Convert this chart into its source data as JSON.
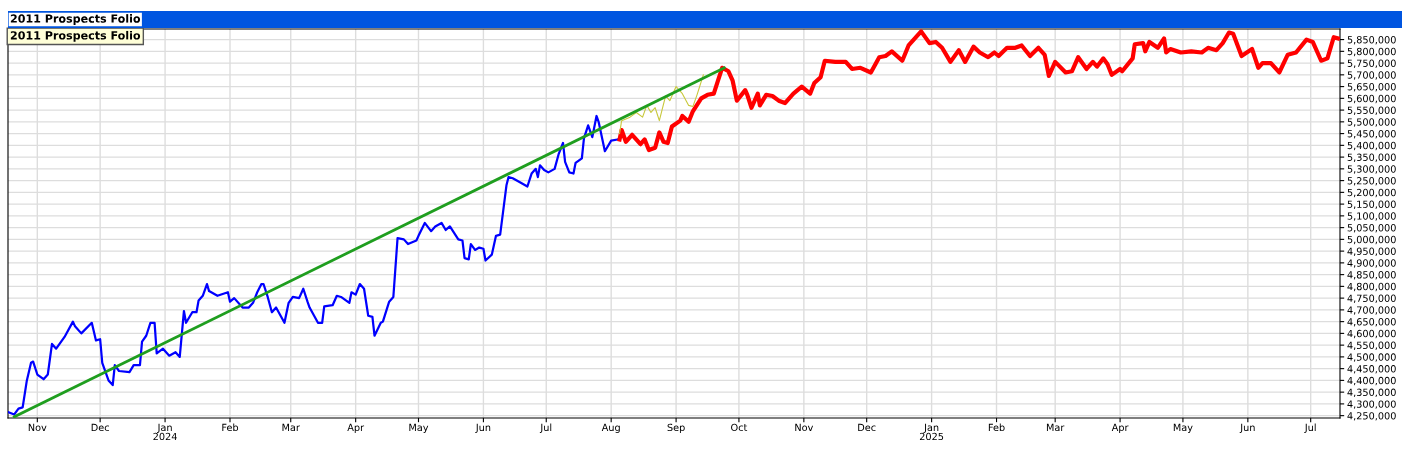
{
  "chart_data": {
    "type": "line",
    "title": "2011 Prospects Folio",
    "annotations": [
      "2011 Prospects Folio"
    ],
    "xlim": [
      "2023-10-18",
      "2025-07-15"
    ],
    "xticks": [
      {
        "value": "2023-11-01",
        "label": "Nov"
      },
      {
        "value": "2023-12-01",
        "label": "Dec"
      },
      {
        "value": "2024-01-01",
        "label": "Jan\n2024"
      },
      {
        "value": "2024-02-01",
        "label": "Feb"
      },
      {
        "value": "2024-03-01",
        "label": "Mar"
      },
      {
        "value": "2024-04-01",
        "label": "Apr"
      },
      {
        "value": "2024-05-01",
        "label": "May"
      },
      {
        "value": "2024-06-01",
        "label": "Jun"
      },
      {
        "value": "2024-07-01",
        "label": "Jul"
      },
      {
        "value": "2024-08-01",
        "label": "Aug"
      },
      {
        "value": "2024-09-01",
        "label": "Sep"
      },
      {
        "value": "2024-10-01",
        "label": "Oct"
      },
      {
        "value": "2024-11-01",
        "label": "Nov"
      },
      {
        "value": "2024-12-01",
        "label": "Dec"
      },
      {
        "value": "2025-01-01",
        "label": "Jan\n2025"
      },
      {
        "value": "2025-02-01",
        "label": "Feb"
      },
      {
        "value": "2025-03-01",
        "label": "Mar"
      },
      {
        "value": "2025-04-01",
        "label": "Apr"
      },
      {
        "value": "2025-05-01",
        "label": "May"
      },
      {
        "value": "2025-06-01",
        "label": "Jun"
      },
      {
        "value": "2025-07-01",
        "label": "Jul"
      }
    ],
    "ylim": [
      4240000,
      5895000
    ],
    "yticks": [
      {
        "value": 4250000,
        "label": "4,250,000"
      },
      {
        "value": 4300000,
        "label": "4,300,000"
      },
      {
        "value": 4350000,
        "label": "4,350,000"
      },
      {
        "value": 4400000,
        "label": "4,400,000"
      },
      {
        "value": 4450000,
        "label": "4,450,000"
      },
      {
        "value": 4500000,
        "label": "4,500,000"
      },
      {
        "value": 4550000,
        "label": "4,550,000"
      },
      {
        "value": 4600000,
        "label": "4,600,000"
      },
      {
        "value": 4650000,
        "label": "4,650,000"
      },
      {
        "value": 4700000,
        "label": "4,700,000"
      },
      {
        "value": 4750000,
        "label": "4,750,000"
      },
      {
        "value": 4800000,
        "label": "4,800,000"
      },
      {
        "value": 4850000,
        "label": "4,850,000"
      },
      {
        "value": 4900000,
        "label": "4,900,000"
      },
      {
        "value": 4950000,
        "label": "4,950,000"
      },
      {
        "value": 5000000,
        "label": "5,000,000"
      },
      {
        "value": 5050000,
        "label": "5,050,000"
      },
      {
        "value": 5100000,
        "label": "5,100,000"
      },
      {
        "value": 5150000,
        "label": "5,150,000"
      },
      {
        "value": 5200000,
        "label": "5,200,000"
      },
      {
        "value": 5250000,
        "label": "5,250,000"
      },
      {
        "value": 5300000,
        "label": "5,300,000"
      },
      {
        "value": 5350000,
        "label": "5,350,000"
      },
      {
        "value": 5400000,
        "label": "5,400,000"
      },
      {
        "value": 5450000,
        "label": "5,450,000"
      },
      {
        "value": 5500000,
        "label": "5,500,000"
      },
      {
        "value": 5550000,
        "label": "5,550,000"
      },
      {
        "value": 5600000,
        "label": "5,600,000"
      },
      {
        "value": 5650000,
        "label": "5,650,000"
      },
      {
        "value": 5700000,
        "label": "5,700,000"
      },
      {
        "value": 5750000,
        "label": "5,750,000"
      },
      {
        "value": 5800000,
        "label": "5,800,000"
      },
      {
        "value": 5850000,
        "label": "5,850,000"
      }
    ],
    "grid": true,
    "series": [
      {
        "color": "#0000ff",
        "x": [
          "2023-10-18",
          "2023-10-21",
          "2023-10-23",
          "2023-10-25",
          "2023-10-27",
          "2023-10-29",
          "2023-10-30",
          "2023-11-01",
          "2023-11-04",
          "2023-11-06",
          "2023-11-08",
          "2023-11-10",
          "2023-11-14",
          "2023-11-18",
          "2023-11-19",
          "2023-11-22",
          "2023-11-27",
          "2023-11-29",
          "2023-12-01",
          "2023-12-02",
          "2023-12-05",
          "2023-12-07",
          "2023-12-08",
          "2023-12-10",
          "2023-12-15",
          "2023-12-17",
          "2023-12-20",
          "2023-12-21",
          "2023-12-23",
          "2023-12-25",
          "2023-12-27",
          "2023-12-28",
          "2023-12-31",
          "2024-01-03",
          "2024-01-06",
          "2024-01-08",
          "2024-01-10",
          "2024-01-11",
          "2024-01-14",
          "2024-01-16",
          "2024-01-17",
          "2024-01-19",
          "2024-01-21",
          "2024-01-22",
          "2024-01-26",
          "2024-01-31",
          "2024-02-01",
          "2024-02-03",
          "2024-02-07",
          "2024-02-10",
          "2024-02-12",
          "2024-02-14",
          "2024-02-16",
          "2024-02-17",
          "2024-02-19",
          "2024-02-21",
          "2024-02-23",
          "2024-02-27",
          "2024-02-29",
          "2024-03-02",
          "2024-03-05",
          "2024-03-07",
          "2024-03-09",
          "2024-03-10",
          "2024-03-14",
          "2024-03-16",
          "2024-03-17",
          "2024-03-21",
          "2024-03-23",
          "2024-03-25",
          "2024-03-29",
          "2024-03-30",
          "2024-04-01",
          "2024-04-03",
          "2024-04-05",
          "2024-04-07",
          "2024-04-09",
          "2024-04-10",
          "2024-04-13",
          "2024-04-14",
          "2024-04-17",
          "2024-04-19",
          "2024-04-21",
          "2024-04-24",
          "2024-04-26",
          "2024-04-30",
          "2024-05-01",
          "2024-05-04",
          "2024-05-07",
          "2024-05-09",
          "2024-05-12",
          "2024-05-14",
          "2024-05-16",
          "2024-05-20",
          "2024-05-22",
          "2024-05-23",
          "2024-05-25",
          "2024-05-26",
          "2024-05-28",
          "2024-05-30",
          "2024-06-01",
          "2024-06-02",
          "2024-06-05",
          "2024-06-07",
          "2024-06-09",
          "2024-06-12",
          "2024-06-13",
          "2024-06-15",
          "2024-06-18",
          "2024-06-22",
          "2024-06-24",
          "2024-06-26",
          "2024-06-27",
          "2024-06-28",
          "2024-06-30",
          "2024-07-02",
          "2024-07-05",
          "2024-07-07",
          "2024-07-09",
          "2024-07-10",
          "2024-07-12",
          "2024-07-14",
          "2024-07-15",
          "2024-07-18",
          "2024-07-19",
          "2024-07-21",
          "2024-07-23",
          "2024-07-25",
          "2024-07-26",
          "2024-07-29",
          "2024-08-01",
          "2024-08-04",
          "2024-08-05"
        ],
        "values": [
          4265000,
          4255000,
          4280000,
          4285000,
          4400000,
          4475000,
          4480000,
          4425000,
          4405000,
          4425000,
          4555000,
          4535000,
          4585000,
          4650000,
          4630000,
          4600000,
          4645000,
          4570000,
          4575000,
          4475000,
          4400000,
          4380000,
          4465000,
          4440000,
          4435000,
          4465000,
          4465000,
          4565000,
          4590000,
          4645000,
          4645000,
          4515000,
          4535000,
          4505000,
          4520000,
          4500000,
          4695000,
          4645000,
          4690000,
          4690000,
          4740000,
          4760000,
          4810000,
          4780000,
          4760000,
          4775000,
          4735000,
          4750000,
          4710000,
          4710000,
          4730000,
          4775000,
          4810000,
          4810000,
          4755000,
          4690000,
          4710000,
          4645000,
          4730000,
          4755000,
          4750000,
          4790000,
          4735000,
          4710000,
          4645000,
          4645000,
          4715000,
          4720000,
          4760000,
          4755000,
          4730000,
          4775000,
          4765000,
          4810000,
          4790000,
          4675000,
          4670000,
          4590000,
          4645000,
          4650000,
          4735000,
          4755000,
          5005000,
          5000000,
          4980000,
          4995000,
          5015000,
          5070000,
          5035000,
          5055000,
          5070000,
          5040000,
          5055000,
          5000000,
          4995000,
          4920000,
          4915000,
          4980000,
          4955000,
          4965000,
          4960000,
          4910000,
          4935000,
          5015000,
          5020000,
          5230000,
          5265000,
          5260000,
          5245000,
          5225000,
          5280000,
          5300000,
          5265000,
          5315000,
          5295000,
          5285000,
          5300000,
          5365000,
          5410000,
          5330000,
          5285000,
          5280000,
          5325000,
          5345000,
          5430000,
          5485000,
          5435000,
          5525000,
          5500000,
          5375000,
          5420000,
          5425000,
          5425000
        ]
      },
      {
        "color": "#ff0000",
        "x": [
          "2024-08-05",
          "2024-08-06",
          "2024-08-08",
          "2024-08-11",
          "2024-08-15",
          "2024-08-17",
          "2024-08-19",
          "2024-08-22",
          "2024-08-24",
          "2024-08-26",
          "2024-08-28",
          "2024-08-30",
          "2024-09-03",
          "2024-09-04",
          "2024-09-07",
          "2024-09-09",
          "2024-09-13",
          "2024-09-16",
          "2024-09-19",
          "2024-09-21",
          "2024-09-23",
          "2024-09-26",
          "2024-09-28",
          "2024-09-30",
          "2024-10-04",
          "2024-10-05",
          "2024-10-07",
          "2024-10-10",
          "2024-10-11",
          "2024-10-14",
          "2024-10-17",
          "2024-10-20",
          "2024-10-23",
          "2024-10-27",
          "2024-10-31",
          "2024-11-04",
          "2024-11-06",
          "2024-11-09",
          "2024-11-11",
          "2024-11-16",
          "2024-11-21",
          "2024-11-24",
          "2024-11-28",
          "2024-12-03",
          "2024-12-07",
          "2024-12-10",
          "2024-12-13",
          "2024-12-18",
          "2024-12-21",
          "2024-12-27",
          "2024-12-31",
          "2025-01-03",
          "2025-01-06",
          "2025-01-10",
          "2025-01-14",
          "2025-01-17",
          "2025-01-21",
          "2025-01-24",
          "2025-01-28",
          "2025-01-31",
          "2025-02-02",
          "2025-02-06",
          "2025-02-10",
          "2025-02-13",
          "2025-02-17",
          "2025-02-21",
          "2025-02-24",
          "2025-02-26",
          "2025-03-01",
          "2025-03-06",
          "2025-03-09",
          "2025-03-12",
          "2025-03-16",
          "2025-03-19",
          "2025-03-21",
          "2025-03-24",
          "2025-03-26",
          "2025-03-28",
          "2025-04-01",
          "2025-04-02",
          "2025-04-07",
          "2025-04-08",
          "2025-04-12",
          "2025-04-13",
          "2025-04-15",
          "2025-04-19",
          "2025-04-22",
          "2025-04-23",
          "2025-04-25",
          "2025-04-30",
          "2025-05-05",
          "2025-05-10",
          "2025-05-13",
          "2025-05-17",
          "2025-05-20",
          "2025-05-23",
          "2025-05-25",
          "2025-05-29",
          "2025-06-03",
          "2025-06-06",
          "2025-06-08",
          "2025-06-12",
          "2025-06-16",
          "2025-06-20",
          "2025-06-24",
          "2025-06-29",
          "2025-07-02",
          "2025-07-06",
          "2025-07-09",
          "2025-07-12",
          "2025-07-14"
        ],
        "values": [
          5425000,
          5465000,
          5415000,
          5445000,
          5405000,
          5425000,
          5380000,
          5390000,
          5455000,
          5415000,
          5410000,
          5480000,
          5505000,
          5525000,
          5500000,
          5545000,
          5600000,
          5615000,
          5620000,
          5675000,
          5730000,
          5715000,
          5675000,
          5590000,
          5635000,
          5615000,
          5560000,
          5620000,
          5570000,
          5615000,
          5610000,
          5590000,
          5580000,
          5620000,
          5650000,
          5620000,
          5665000,
          5690000,
          5760000,
          5755000,
          5755000,
          5725000,
          5730000,
          5710000,
          5775000,
          5780000,
          5800000,
          5760000,
          5825000,
          5885000,
          5835000,
          5840000,
          5815000,
          5755000,
          5805000,
          5755000,
          5820000,
          5795000,
          5775000,
          5795000,
          5780000,
          5815000,
          5815000,
          5825000,
          5780000,
          5815000,
          5785000,
          5695000,
          5755000,
          5710000,
          5715000,
          5775000,
          5725000,
          5755000,
          5735000,
          5770000,
          5745000,
          5700000,
          5725000,
          5715000,
          5770000,
          5830000,
          5835000,
          5800000,
          5840000,
          5815000,
          5855000,
          5795000,
          5810000,
          5795000,
          5800000,
          5795000,
          5815000,
          5805000,
          5835000,
          5880000,
          5875000,
          5780000,
          5810000,
          5730000,
          5750000,
          5750000,
          5710000,
          5785000,
          5795000,
          5850000,
          5840000,
          5760000,
          5770000,
          5860000,
          5855000
        ]
      },
      {
        "color": "#c8c83c",
        "x": [
          "2024-08-05",
          "2024-08-06",
          "2024-08-10",
          "2024-08-13",
          "2024-08-16",
          "2024-08-18",
          "2024-08-20",
          "2024-08-22",
          "2024-08-24",
          "2024-08-27",
          "2024-08-29",
          "2024-09-01",
          "2024-09-04",
          "2024-09-07",
          "2024-09-09",
          "2024-09-11",
          "2024-09-14"
        ],
        "values": [
          5450000,
          5505000,
          5520000,
          5540000,
          5520000,
          5570000,
          5540000,
          5560000,
          5505000,
          5610000,
          5590000,
          5650000,
          5620000,
          5570000,
          5565000,
          5615000,
          5700000
        ]
      },
      {
        "color": "#1f9e1f",
        "x": [
          "2023-10-21",
          "2024-09-24"
        ],
        "values": [
          4245000,
          5730000
        ]
      }
    ]
  }
}
